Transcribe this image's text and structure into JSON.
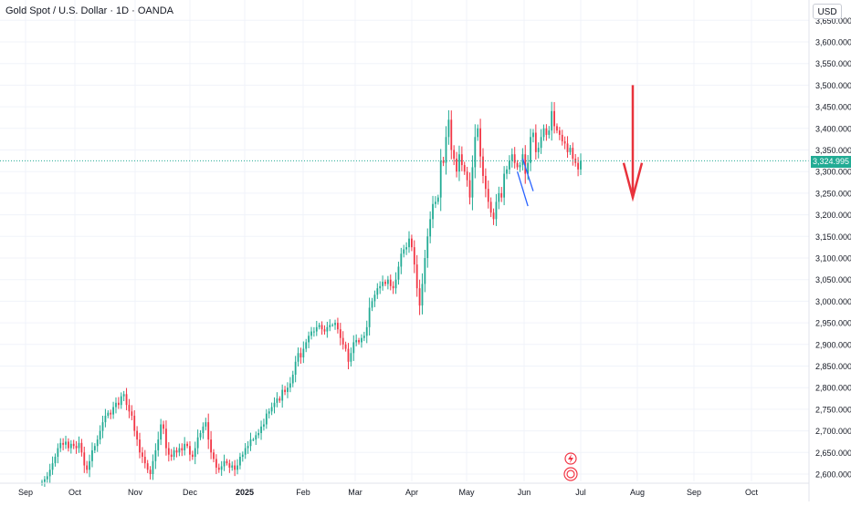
{
  "header": {
    "title": "Gold Spot / U.S. Dollar · 1D · OANDA",
    "currency": "USD"
  },
  "last_price": {
    "label": "3,324.995",
    "value": 3324.995,
    "color": "#22ab94"
  },
  "colors": {
    "up": "#22ab94",
    "down": "#f23645",
    "grid": "#f0f3fa",
    "text": "#131722",
    "arrow": "#e8323c",
    "projection": "#2962ff"
  },
  "chart_data": {
    "type": "candlestick",
    "title": "",
    "xlabel": "",
    "ylabel": "",
    "ylim": [
      2580,
      3650
    ],
    "grid": true,
    "x_ticks": [
      "Sep",
      "Oct",
      "Nov",
      "Dec",
      "2025",
      "Feb",
      "Mar",
      "Apr",
      "May",
      "Jun",
      "Jul",
      "Aug",
      "Sep",
      "Oct"
    ],
    "y_ticks": [
      {
        "value": 2600,
        "label": "2,600.000"
      },
      {
        "value": 2650,
        "label": "2,650.000"
      },
      {
        "value": 2700,
        "label": "2,700.000"
      },
      {
        "value": 2750,
        "label": "2,750.000"
      },
      {
        "value": 2800,
        "label": "2,800.000"
      },
      {
        "value": 2850,
        "label": "2,850.000"
      },
      {
        "value": 2900,
        "label": "2,900.000"
      },
      {
        "value": 2950,
        "label": "2,950.000"
      },
      {
        "value": 3000,
        "label": "3,000.000"
      },
      {
        "value": 3050,
        "label": "3,050.000"
      },
      {
        "value": 3100,
        "label": "3,100.000"
      },
      {
        "value": 3150,
        "label": "3,150.000"
      },
      {
        "value": 3200,
        "label": "3,200.000"
      },
      {
        "value": 3250,
        "label": "3,250.000"
      },
      {
        "value": 3300,
        "label": "3,300.000"
      },
      {
        "value": 3350,
        "label": "3,350.000"
      },
      {
        "value": 3400,
        "label": "3,400.000"
      },
      {
        "value": 3450,
        "label": "3,450.000"
      },
      {
        "value": 3500,
        "label": "3,500.000"
      },
      {
        "value": 3550,
        "label": "3,550.000"
      },
      {
        "value": 3600,
        "label": "3,600.000"
      },
      {
        "value": 3650,
        "label": "3,650.000"
      }
    ],
    "series": [
      {
        "values": [
          2582,
          2588,
          2595,
          2610,
          2625,
          2640,
          2660,
          2672,
          2668,
          2675,
          2660,
          2670,
          2665,
          2660,
          2672,
          2650,
          2620,
          2610,
          2630,
          2655,
          2665,
          2680,
          2700,
          2720,
          2735,
          2742,
          2738,
          2755,
          2765,
          2760,
          2780,
          2785,
          2760,
          2745,
          2735,
          2700,
          2680,
          2650,
          2640,
          2625,
          2610,
          2600,
          2630,
          2655,
          2680,
          2715,
          2705,
          2660,
          2645,
          2640,
          2655,
          2650,
          2660,
          2655,
          2670,
          2665,
          2645,
          2640,
          2660,
          2685,
          2695,
          2710,
          2720,
          2680,
          2650,
          2635,
          2615,
          2610,
          2618,
          2630,
          2625,
          2615,
          2620,
          2610,
          2620,
          2640,
          2645,
          2660,
          2665,
          2680,
          2680,
          2690,
          2695,
          2710,
          2715,
          2740,
          2745,
          2755,
          2765,
          2775,
          2770,
          2795,
          2790,
          2800,
          2810,
          2830,
          2860,
          2880,
          2870,
          2890,
          2905,
          2920,
          2930,
          2930,
          2940,
          2945,
          2935,
          2930,
          2940,
          2945,
          2945,
          2950,
          2935,
          2915,
          2900,
          2890,
          2860,
          2880,
          2905,
          2910,
          2905,
          2915,
          2920,
          2940,
          2985,
          3000,
          3015,
          3030,
          3035,
          3045,
          3040,
          3050,
          3035,
          3030,
          3050,
          3080,
          3110,
          3120,
          3125,
          3145,
          3125,
          3085,
          3030,
          2990,
          3040,
          3100,
          3150,
          3190,
          3225,
          3230,
          3240,
          3325,
          3320,
          3380,
          3420,
          3350,
          3330,
          3300,
          3340,
          3315,
          3300,
          3280,
          3240,
          3310,
          3380,
          3400,
          3335,
          3290,
          3260,
          3230,
          3205,
          3190,
          3230,
          3250,
          3240,
          3295,
          3305,
          3325,
          3340,
          3320,
          3310,
          3315,
          3340,
          3295,
          3320,
          3380,
          3390,
          3345,
          3355,
          3380,
          3400,
          3385,
          3395,
          3440,
          3405,
          3395,
          3385,
          3370,
          3365,
          3345,
          3355,
          3330,
          3320,
          3305,
          3325
        ]
      }
    ],
    "last_price": 3324.995,
    "annotations": [
      {
        "type": "projection",
        "points": [
          [
            180,
            3300
          ],
          [
            184,
            3220
          ]
        ]
      },
      {
        "type": "projection",
        "points": [
          [
            182,
            3330
          ],
          [
            186,
            3255
          ]
        ]
      },
      {
        "type": "arrow",
        "direction": "down",
        "from": 3500,
        "to": 3240
      }
    ]
  }
}
